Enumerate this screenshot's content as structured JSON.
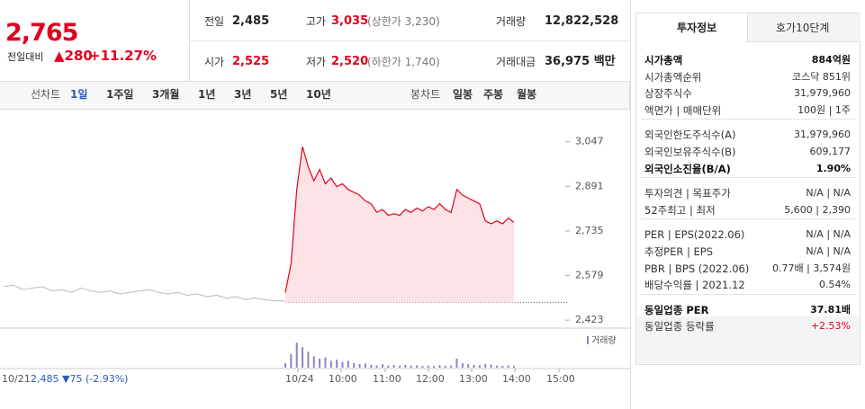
{
  "header": {
    "price": "2,765",
    "change_label": "전일대비",
    "change": "▲280",
    "change_rate": "+11.27%",
    "stats": [
      [
        {
          "label": "전일",
          "value": "2,485"
        },
        {
          "label": "고가",
          "value": "3,035",
          "note": "(상한가 3,230)"
        },
        {
          "label": "거래량",
          "value": "12,822,528"
        }
      ],
      [
        {
          "label": "시가",
          "value": "2,525"
        },
        {
          "label": "저가",
          "value": "2,520",
          "note": "(하한가 1,740)"
        },
        {
          "label": "거래대금",
          "value": "36,975 백만"
        }
      ]
    ]
  },
  "tabs": {
    "line_label": "선차트",
    "line_periods": [
      "1일",
      "1주일",
      "3개월",
      "1년",
      "3년",
      "5년",
      "10년"
    ],
    "active": "1일",
    "candle_label": "봉차트",
    "candle_periods": [
      "일봉",
      "주봉",
      "월봉"
    ]
  },
  "chart": {
    "ylim": [
      2395,
      3150
    ],
    "yticks": [
      {
        "value": 3047,
        "label": "3,047"
      },
      {
        "value": 2891,
        "label": "2,891"
      },
      {
        "value": 2735,
        "label": "2,735"
      },
      {
        "value": 2579,
        "label": "2,579"
      },
      {
        "value": 2423,
        "label": "2,423"
      }
    ],
    "prev_close": 2485,
    "prev_day_values": [
      2540,
      2545,
      2530,
      2535,
      2540,
      2525,
      2530,
      2520,
      2535,
      2525,
      2520,
      2525,
      2515,
      2520,
      2525,
      2530,
      2520,
      2515,
      2520,
      2510,
      2515,
      2505,
      2510,
      2500,
      2505,
      2495,
      2500,
      2495,
      2490,
      2490
    ],
    "today_values": [
      2520,
      2620,
      2880,
      3030,
      2960,
      2910,
      2950,
      2900,
      2920,
      2890,
      2900,
      2880,
      2870,
      2860,
      2840,
      2830,
      2800,
      2810,
      2790,
      2795,
      2790,
      2810,
      2800,
      2815,
      2805,
      2820,
      2810,
      2830,
      2810,
      2800,
      2880,
      2860,
      2850,
      2840,
      2830,
      2770,
      2760,
      2770,
      2760,
      2780,
      2765
    ],
    "volume_label": "거래량",
    "volume_ylim": [
      0,
      1500000
    ],
    "volume_values": [
      200000,
      600000,
      1100000,
      900000,
      700000,
      500000,
      400000,
      450000,
      300000,
      350000,
      250000,
      300000,
      200000,
      150000,
      180000,
      120000,
      100000,
      150000,
      90000,
      110000,
      80000,
      120000,
      90000,
      100000,
      80000,
      90000,
      70000,
      110000,
      80000,
      90000,
      400000,
      200000,
      150000,
      120000,
      100000,
      160000,
      130000,
      90000,
      80000,
      100000,
      70000
    ],
    "prev_day_label": "10/21",
    "prev_day_summary": "2,485 ▼75 (-2.93%)",
    "x_labels": [
      "10/24",
      "10:00",
      "11:00",
      "12:00",
      "13:00",
      "14:00",
      "15:00"
    ]
  },
  "info": {
    "tabs": [
      "투자정보",
      "호가10단계"
    ],
    "sections": [
      [
        {
          "label": "시가총액",
          "value": "884억원",
          "bold": true
        },
        {
          "label": "시가총액순위",
          "value": "코스닥 851위"
        },
        {
          "label": "상장주식수",
          "value": "31,979,960"
        },
        {
          "label": "액면가 | 매매단위",
          "value": "100원 | 1주"
        }
      ],
      [
        {
          "label": "외국인한도주식수(A)",
          "value": "31,979,960"
        },
        {
          "label": "외국인보유주식수(B)",
          "value": "609,177"
        },
        {
          "label": "외국인소진율(B/A)",
          "value": "1.90%",
          "bold": true
        }
      ],
      [
        {
          "label": "투자의견 | 목표주가",
          "value": "N/A | N/A"
        },
        {
          "label": "52주최고 | 최저",
          "value": "5,600 | 2,390"
        }
      ],
      [
        {
          "label": "PER | EPS(2022.06)",
          "value": "N/A | N/A"
        },
        {
          "label": "추정PER | EPS",
          "value": "N/A | N/A"
        },
        {
          "label": "PBR | BPS (2022.06)",
          "value": "0.77배 | 3,574원"
        },
        {
          "label": "배당수익률 | 2021.12",
          "value": "0.54%"
        }
      ],
      [
        {
          "label": "동일업종 PER",
          "value": "37.81배",
          "bold": true
        },
        {
          "label": "동일업종 등락률",
          "value": "+2.53%",
          "red": true
        }
      ]
    ]
  }
}
